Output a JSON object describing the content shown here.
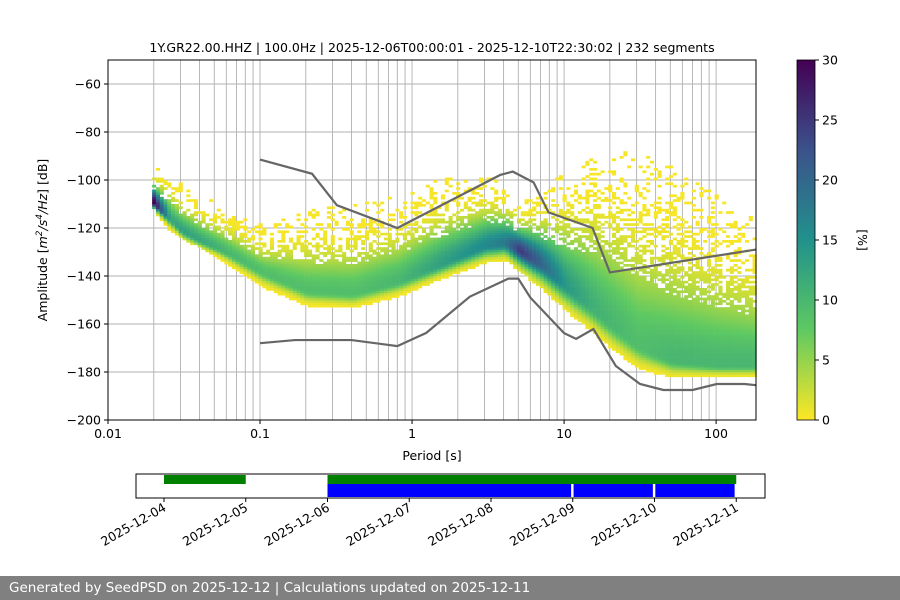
{
  "chart_data": {
    "type": "heatmap",
    "title": "1Y.GR22.00.HHZ | 100.0Hz | 2025-12-06T00:00:01 - 2025-12-10T22:30:02 | 232 segments",
    "xlabel": "Period [s]",
    "ylabel_parts": [
      "Amplitude [",
      "m",
      "2",
      "/s",
      "4",
      "/Hz",
      "] [dB]"
    ],
    "xscale": "log",
    "xlim": [
      0.01,
      183
    ],
    "ylim": [
      -200,
      -50
    ],
    "xticks": [
      0.01,
      0.1,
      1,
      10,
      100
    ],
    "xtick_labels": [
      "0.01",
      "0.1",
      "1",
      "10",
      "100"
    ],
    "yticks": [
      -200,
      -180,
      -160,
      -140,
      -120,
      -100,
      -80,
      -60
    ],
    "ytick_labels": [
      "−200",
      "−180",
      "−160",
      "−140",
      "−120",
      "−100",
      "−80",
      "−60"
    ],
    "grid": true,
    "colorbar": {
      "label": "[%]",
      "range": [
        0,
        30
      ],
      "ticks": [
        0,
        5,
        10,
        15,
        20,
        25,
        30
      ],
      "tick_labels": [
        "0",
        "5",
        "10",
        "15",
        "20",
        "25",
        "30"
      ],
      "colormap": [
        "#fde725",
        "#5ec962",
        "#21918c",
        "#3b528b",
        "#440154"
      ]
    },
    "psd_histogram": {
      "period": [
        0.0195,
        0.025,
        0.03,
        0.04,
        0.06,
        0.1,
        0.2,
        0.4,
        0.8,
        1.5,
        3,
        4,
        5,
        7,
        10,
        15,
        20,
        30,
        50,
        100,
        183
      ],
      "mode_db": [
        -110,
        -117,
        -122,
        -126,
        -131,
        -139,
        -147,
        -148,
        -143,
        -136,
        -128,
        -127,
        -130,
        -136,
        -145,
        -154,
        -161,
        -170,
        -176,
        -178,
        -178
      ],
      "upper_db": [
        -95,
        -98,
        -103,
        -108,
        -113,
        -120,
        -113,
        -112,
        -108,
        -101,
        -100,
        -103,
        -110,
        -105,
        -98,
        -90,
        -87,
        -90,
        -96,
        -108,
        -118
      ],
      "lower_db": [
        -112,
        -121,
        -124,
        -128,
        -135,
        -144,
        -152,
        -153,
        -148,
        -141,
        -134,
        -133,
        -138,
        -145,
        -154,
        -163,
        -170,
        -178,
        -182,
        -182,
        -182
      ],
      "peak_percent": [
        30,
        12,
        13,
        12,
        10,
        9,
        9,
        9,
        10,
        13,
        16,
        18,
        25,
        20,
        14,
        11,
        10,
        9,
        10,
        10,
        10
      ]
    },
    "noise_models": [
      {
        "name": "NHNM",
        "color": "#666666",
        "period": [
          0.1,
          0.22,
          0.32,
          0.8,
          3.8,
          4.6,
          6.3,
          7.9,
          15.4,
          20,
          183
        ],
        "db": [
          -91.5,
          -97.4,
          -110.5,
          -120,
          -97.9,
          -96.5,
          -101,
          -113.5,
          -120,
          -138.5,
          -129
        ]
      },
      {
        "name": "NLNM",
        "color": "#666666",
        "period": [
          0.1,
          0.17,
          0.4,
          0.8,
          1.24,
          2.4,
          4.3,
          5,
          6,
          10,
          12,
          15.6,
          21.9,
          31.6,
          45,
          70,
          101,
          154,
          183
        ],
        "db": [
          -168,
          -166.7,
          -166.7,
          -169.2,
          -163.7,
          -148.6,
          -141.1,
          -141.1,
          -149,
          -163.8,
          -166.2,
          -162.1,
          -177.5,
          -185,
          -187.5,
          -187.5,
          -185,
          -185,
          -185.5
        ]
      }
    ],
    "timeline": {
      "xlim_days": [
        "2025-12-03T16:00",
        "2025-12-11T08:30"
      ],
      "tick_labels": [
        "2025-12-04",
        "2025-12-05",
        "2025-12-06",
        "2025-12-07",
        "2025-12-08",
        "2025-12-09",
        "2025-12-10",
        "2025-12-11"
      ],
      "data_available": [
        [
          0,
          1
        ],
        [
          2,
          7
        ]
      ],
      "psd_used": [
        [
          2,
          4.98
        ],
        [
          5.01,
          5.98
        ],
        [
          6.01,
          6.98
        ]
      ],
      "data_color": "#008000",
      "psd_color": "#0000ff"
    }
  },
  "footer": {
    "text": "Generated by SeedPSD on 2025-12-12 | Calculations updated on 2025-12-11"
  }
}
